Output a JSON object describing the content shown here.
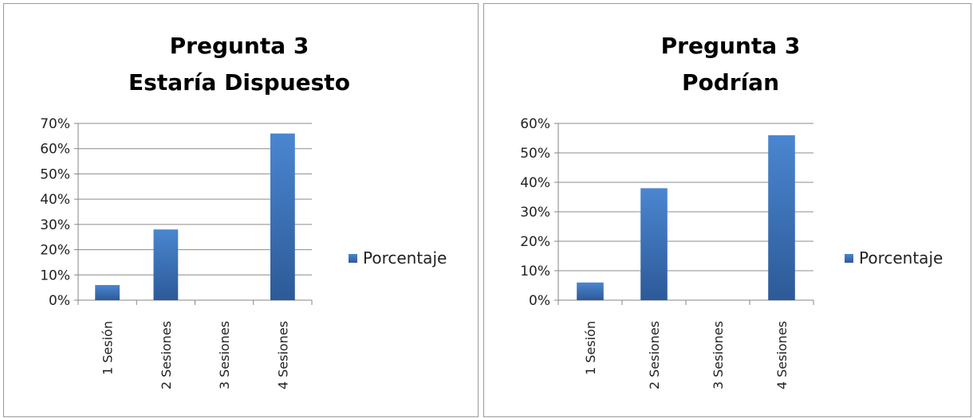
{
  "chart_data": [
    {
      "type": "bar",
      "title": "Pregunta 3",
      "subtitle": "Estaría Dispuesto",
      "categories": [
        "1 Sesión",
        "2 Sesiones",
        "3 Sesiones",
        "4 Sesiones"
      ],
      "series": [
        {
          "name": "Porcentaje",
          "values": [
            6,
            28,
            0,
            66
          ]
        }
      ],
      "y_ticks": [
        "0%",
        "10%",
        "20%",
        "30%",
        "40%",
        "50%",
        "60%",
        "70%"
      ],
      "ylim": [
        0,
        70
      ],
      "grid": true,
      "legend": "right",
      "bar_color": "#3a6fba"
    },
    {
      "type": "bar",
      "title": "Pregunta 3",
      "subtitle": "Podrían",
      "categories": [
        "1 Sesión",
        "2 Sesiones",
        "3 Sesiones",
        "4 Sesiones"
      ],
      "series": [
        {
          "name": "Porcentaje",
          "values": [
            6,
            38,
            0,
            56
          ]
        }
      ],
      "y_ticks": [
        "0%",
        "10%",
        "20%",
        "30%",
        "40%",
        "50%",
        "60%"
      ],
      "ylim": [
        0,
        60
      ],
      "grid": true,
      "legend": "right",
      "bar_color": "#3a6fba"
    }
  ]
}
